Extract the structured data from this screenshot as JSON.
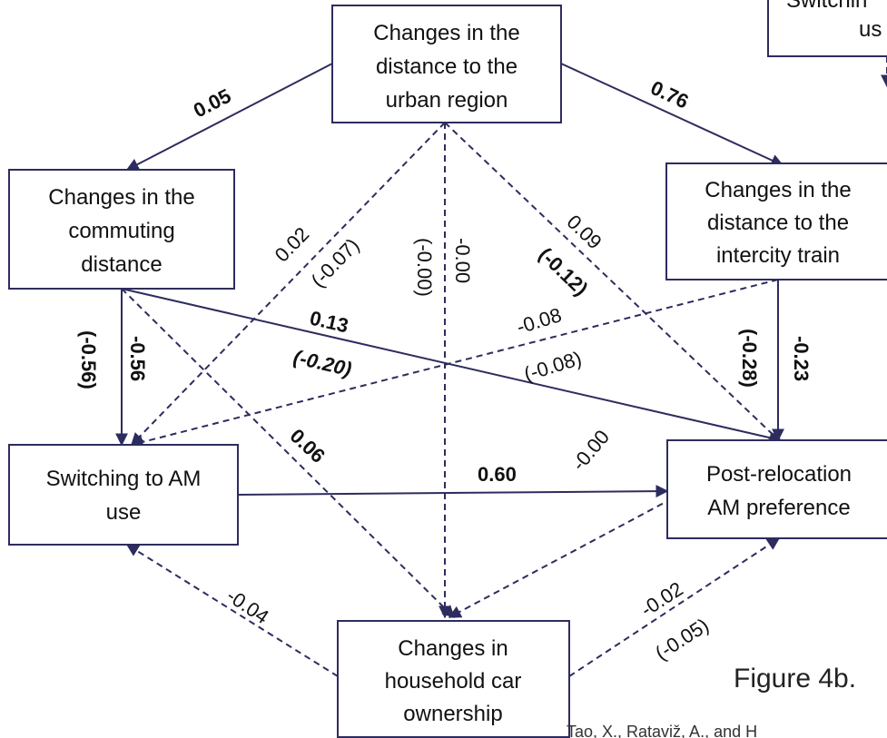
{
  "nodes": {
    "urban_region": [
      "Changes in the",
      "distance to the",
      "urban region"
    ],
    "commuting": [
      "Changes in the",
      "commuting",
      "distance"
    ],
    "intercity": [
      "Changes in the",
      "distance to the",
      "intercity train"
    ],
    "switching": [
      "Switching to AM",
      "use"
    ],
    "preference": [
      "Post-relocation",
      "AM preference"
    ],
    "car_ownership": [
      "Changes in",
      "household car",
      "ownership"
    ],
    "partial_top_right": [
      "Switchin",
      "us"
    ]
  },
  "edge_labels": {
    "urban_commuting": "0.05",
    "urban_intercity": "0.76",
    "urban_switch_a": "0.02",
    "urban_switch_b": "(-0.07)",
    "urban_car_a": "-0.00",
    "urban_car_b": "(-0.00)",
    "urban_pref_a": "0.09",
    "urban_pref_b": "(-0.12)",
    "commuting_pref_a": "0.13",
    "commuting_pref_b": "(-0.20)",
    "commuting_switch_a": "-0.56",
    "commuting_switch_b": "(-0.56)",
    "commuting_car": "0.06",
    "intercity_switch_a": "-0.08",
    "intercity_switch_b": "(-0.08)",
    "intercity_pref_a": "-0.23",
    "intercity_pref_b": "(-0.28)",
    "switch_pref": "0.60",
    "pref_car": "-0.00",
    "car_switch": "-0.04",
    "car_pref_a": "-0.02",
    "car_pref_b": "(-0.05)"
  },
  "caption": "Figure 4b.",
  "credit": "Tao, X., Rataviž, A., and H"
}
